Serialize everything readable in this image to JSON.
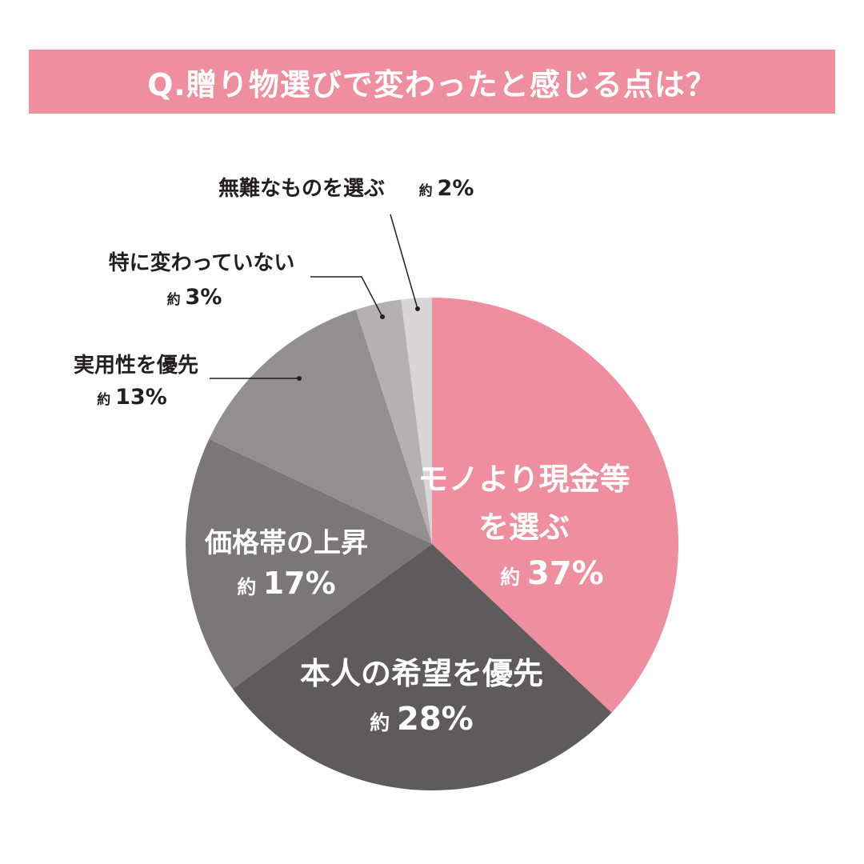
{
  "title": "Q.贈り物選びで変わったと感じる点は？",
  "colors": {
    "title_bar": "#ee8e9e",
    "slices": [
      "#ee8e9e",
      "#5f5a5b",
      "#7b7677",
      "#938e8f",
      "#b5b1b2",
      "#d8d5d6"
    ]
  },
  "chart_data": {
    "type": "pie",
    "start_angle": "12 o'clock, clockwise",
    "slices": [
      {
        "label_lines": [
          "モノより現金等",
          "を選ぶ"
        ],
        "prefix": "約",
        "value": 37,
        "display": "37%"
      },
      {
        "label_lines": [
          "本人の希望を優先"
        ],
        "prefix": "約",
        "value": 28,
        "display": "28%"
      },
      {
        "label_lines": [
          "価格帯の上昇"
        ],
        "prefix": "約",
        "value": 17,
        "display": "17%"
      },
      {
        "label_lines": [
          "実用性を優先"
        ],
        "prefix": "約",
        "value": 13,
        "display": "13%"
      },
      {
        "label_lines": [
          "特に変わっていない"
        ],
        "prefix": "約",
        "value": 3,
        "display": "3%"
      },
      {
        "label_lines": [
          "無難なものを選ぶ"
        ],
        "prefix": "約",
        "value": 2,
        "display": "2%"
      }
    ]
  }
}
